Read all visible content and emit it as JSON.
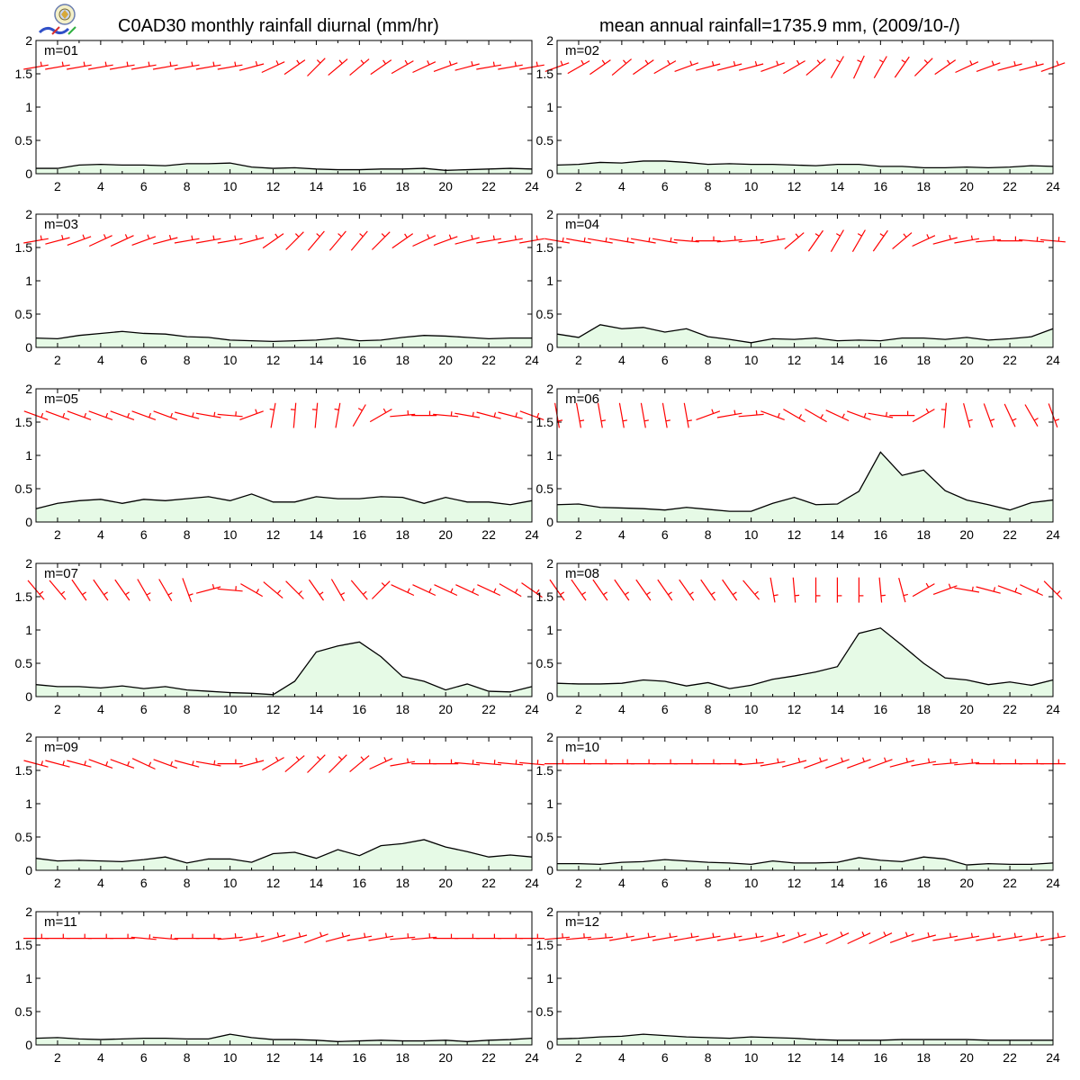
{
  "header": {
    "title_left": "C0AD30 monthly rainfall diurnal (mm/hr)",
    "title_right": "mean annual rainfall=1735.9 mm, (2009/10-/)",
    "logo_icon": "station-logo-icon"
  },
  "colors": {
    "fill": "#e6fae6",
    "line": "#000000",
    "barb": "#ff0000",
    "frame": "#000000"
  },
  "chart_data": {
    "type": "area",
    "x": [
      1,
      2,
      3,
      4,
      5,
      6,
      7,
      8,
      9,
      10,
      11,
      12,
      13,
      14,
      15,
      16,
      17,
      18,
      19,
      20,
      21,
      22,
      23,
      24
    ],
    "xticks": [
      2,
      4,
      6,
      8,
      10,
      12,
      14,
      16,
      18,
      20,
      22,
      24
    ],
    "xticklabels": [
      "2",
      "4",
      "6",
      "8",
      "10",
      "12",
      "14",
      "16",
      "18",
      "20",
      "22",
      "24"
    ],
    "xlim": [
      1,
      24
    ],
    "ylim": [
      0,
      2
    ],
    "yticks": [
      0,
      0.5,
      1,
      1.5,
      2
    ],
    "yticklabels": [
      "0",
      "0.5",
      "1",
      "1.5",
      "2"
    ],
    "grid": false,
    "panels": [
      {
        "label": "m=01",
        "values": [
          0.08,
          0.08,
          0.13,
          0.14,
          0.13,
          0.13,
          0.12,
          0.15,
          0.15,
          0.16,
          0.1,
          0.08,
          0.09,
          0.07,
          0.06,
          0.06,
          0.07,
          0.07,
          0.08,
          0.05,
          0.06,
          0.07,
          0.08,
          0.07
        ],
        "wind_angles": [
          -10,
          -10,
          -10,
          -10,
          -10,
          -10,
          -10,
          -10,
          -10,
          -10,
          -15,
          -25,
          -35,
          -45,
          -40,
          -40,
          -35,
          -30,
          -25,
          -20,
          -15,
          -10,
          -10,
          -10
        ]
      },
      {
        "label": "m=02",
        "values": [
          0.13,
          0.14,
          0.17,
          0.16,
          0.19,
          0.19,
          0.17,
          0.14,
          0.15,
          0.14,
          0.14,
          0.13,
          0.12,
          0.14,
          0.14,
          0.11,
          0.11,
          0.09,
          0.09,
          0.1,
          0.09,
          0.1,
          0.12,
          0.11
        ],
        "wind_angles": [
          -20,
          -30,
          -35,
          -40,
          -35,
          -30,
          -20,
          -15,
          -15,
          -15,
          -20,
          -30,
          -40,
          -60,
          -65,
          -60,
          -55,
          -45,
          -35,
          -25,
          -20,
          -15,
          -15,
          -20
        ]
      },
      {
        "label": "m=03",
        "values": [
          0.14,
          0.13,
          0.18,
          0.21,
          0.24,
          0.21,
          0.2,
          0.16,
          0.15,
          0.11,
          0.1,
          0.09,
          0.1,
          0.11,
          0.14,
          0.1,
          0.11,
          0.15,
          0.18,
          0.17,
          0.15,
          0.13,
          0.14,
          0.14
        ],
        "wind_angles": [
          -10,
          -15,
          -20,
          -25,
          -25,
          -20,
          -15,
          -10,
          -10,
          -10,
          -15,
          -35,
          -45,
          -50,
          -50,
          -50,
          -45,
          -35,
          -25,
          -20,
          -15,
          -10,
          -10,
          -10
        ]
      },
      {
        "label": "m=04",
        "values": [
          0.2,
          0.15,
          0.34,
          0.28,
          0.3,
          0.23,
          0.28,
          0.16,
          0.12,
          0.07,
          0.13,
          0.12,
          0.14,
          0.1,
          0.11,
          0.1,
          0.14,
          0.14,
          0.12,
          0.15,
          0.11,
          0.13,
          0.16,
          0.28
        ],
        "wind_angles": [
          10,
          10,
          10,
          10,
          10,
          10,
          5,
          0,
          -5,
          -5,
          -10,
          -40,
          -55,
          -60,
          -60,
          -55,
          -40,
          -25,
          -15,
          -10,
          -5,
          0,
          5,
          5
        ]
      },
      {
        "label": "m=05",
        "values": [
          0.2,
          0.28,
          0.32,
          0.34,
          0.28,
          0.34,
          0.32,
          0.35,
          0.38,
          0.32,
          0.42,
          0.3,
          0.3,
          0.38,
          0.35,
          0.35,
          0.38,
          0.37,
          0.28,
          0.37,
          0.3,
          0.3,
          0.26,
          0.32
        ],
        "wind_angles": [
          20,
          20,
          20,
          20,
          20,
          20,
          20,
          15,
          10,
          5,
          -20,
          -80,
          -85,
          -85,
          -80,
          -60,
          -30,
          -5,
          0,
          5,
          10,
          15,
          15,
          20
        ]
      },
      {
        "label": "m=06",
        "values": [
          0.26,
          0.27,
          0.22,
          0.21,
          0.2,
          0.18,
          0.22,
          0.19,
          0.16,
          0.16,
          0.28,
          0.37,
          0.26,
          0.27,
          0.46,
          1.05,
          0.7,
          0.78,
          0.47,
          0.33,
          0.26,
          0.18,
          0.29,
          0.33
        ],
        "wind_angles": [
          80,
          80,
          80,
          80,
          80,
          80,
          80,
          -20,
          -10,
          -5,
          20,
          30,
          30,
          25,
          20,
          10,
          0,
          -30,
          -85,
          75,
          70,
          65,
          60,
          70
        ]
      },
      {
        "label": "m=07",
        "values": [
          0.18,
          0.15,
          0.15,
          0.13,
          0.16,
          0.12,
          0.15,
          0.1,
          0.08,
          0.06,
          0.05,
          0.03,
          0.23,
          0.67,
          0.76,
          0.82,
          0.6,
          0.3,
          0.23,
          0.1,
          0.19,
          0.08,
          0.07,
          0.15
        ],
        "wind_angles": [
          50,
          50,
          55,
          55,
          55,
          60,
          60,
          70,
          -15,
          5,
          30,
          40,
          45,
          55,
          60,
          50,
          -45,
          25,
          25,
          25,
          25,
          25,
          30,
          35
        ]
      },
      {
        "label": "m=08",
        "values": [
          0.2,
          0.19,
          0.19,
          0.2,
          0.25,
          0.23,
          0.16,
          0.21,
          0.12,
          0.17,
          0.26,
          0.31,
          0.37,
          0.45,
          0.95,
          1.03,
          0.77,
          0.5,
          0.28,
          0.25,
          0.18,
          0.22,
          0.17,
          0.25
        ],
        "wind_angles": [
          55,
          55,
          55,
          55,
          55,
          55,
          55,
          55,
          55,
          50,
          80,
          85,
          90,
          90,
          90,
          85,
          75,
          -30,
          -20,
          10,
          15,
          20,
          25,
          45
        ]
      },
      {
        "label": "m=09",
        "values": [
          0.18,
          0.14,
          0.15,
          0.14,
          0.13,
          0.16,
          0.2,
          0.11,
          0.17,
          0.17,
          0.12,
          0.25,
          0.27,
          0.18,
          0.31,
          0.22,
          0.37,
          0.4,
          0.46,
          0.35,
          0.28,
          0.2,
          0.23,
          0.2
        ],
        "wind_angles": [
          15,
          15,
          15,
          20,
          20,
          25,
          20,
          15,
          10,
          0,
          -15,
          -30,
          -40,
          -45,
          -45,
          -40,
          -25,
          -10,
          0,
          0,
          5,
          5,
          5,
          5
        ]
      },
      {
        "label": "m=10",
        "values": [
          0.1,
          0.1,
          0.09,
          0.12,
          0.13,
          0.16,
          0.14,
          0.12,
          0.11,
          0.09,
          0.14,
          0.11,
          0.11,
          0.12,
          0.19,
          0.15,
          0.13,
          0.2,
          0.17,
          0.08,
          0.1,
          0.09,
          0.09,
          0.11
        ],
        "wind_angles": [
          0,
          0,
          0,
          0,
          0,
          0,
          0,
          0,
          0,
          -5,
          -10,
          -15,
          -20,
          -20,
          -20,
          -20,
          -15,
          -10,
          -5,
          -5,
          0,
          0,
          0,
          0
        ]
      },
      {
        "label": "m=11",
        "values": [
          0.1,
          0.11,
          0.09,
          0.08,
          0.09,
          0.1,
          0.1,
          0.09,
          0.09,
          0.16,
          0.11,
          0.08,
          0.08,
          0.07,
          0.05,
          0.06,
          0.07,
          0.06,
          0.06,
          0.07,
          0.05,
          0.07,
          0.08,
          0.1
        ],
        "wind_angles": [
          0,
          0,
          0,
          0,
          0,
          5,
          5,
          0,
          0,
          -5,
          -10,
          -15,
          -15,
          -20,
          -15,
          -10,
          -10,
          -5,
          -5,
          0,
          0,
          0,
          0,
          0
        ]
      },
      {
        "label": "m=12",
        "values": [
          0.09,
          0.1,
          0.12,
          0.13,
          0.16,
          0.14,
          0.12,
          0.11,
          0.1,
          0.12,
          0.11,
          0.1,
          0.08,
          0.07,
          0.07,
          0.07,
          0.08,
          0.08,
          0.08,
          0.08,
          0.07,
          0.07,
          0.07,
          0.07
        ],
        "wind_angles": [
          -5,
          -5,
          -5,
          -10,
          -10,
          -10,
          -10,
          -10,
          -10,
          -10,
          -15,
          -20,
          -20,
          -25,
          -25,
          -25,
          -20,
          -15,
          -10,
          -10,
          -10,
          -10,
          -10,
          -10
        ]
      }
    ]
  }
}
